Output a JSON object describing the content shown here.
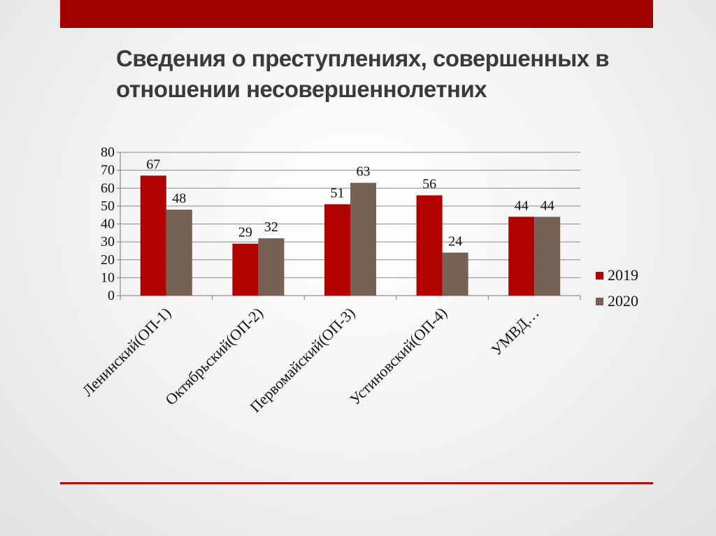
{
  "slide": {
    "title_line1": "Сведения о преступлениях, совершенных в",
    "title_line2": "отношении несовершеннолетних",
    "accent_color": "#a00000"
  },
  "chart_data": {
    "type": "bar",
    "categories": [
      "Ленинский(ОП-1)",
      "Октябрьский(ОП-2)",
      "Первомайский(ОП-3)",
      "Устиновский(ОП-4)",
      "УМВД…"
    ],
    "series": [
      {
        "name": "2019",
        "values": [
          67,
          29,
          51,
          56,
          44
        ],
        "color": "#b00000"
      },
      {
        "name": "2020",
        "values": [
          48,
          32,
          63,
          24,
          44
        ],
        "color": "#776155"
      }
    ],
    "yticks": [
      0,
      10,
      20,
      30,
      40,
      50,
      60,
      70,
      80
    ],
    "ylim": [
      0,
      80
    ],
    "grid": true,
    "data_labels": true,
    "legend_position": "right"
  }
}
